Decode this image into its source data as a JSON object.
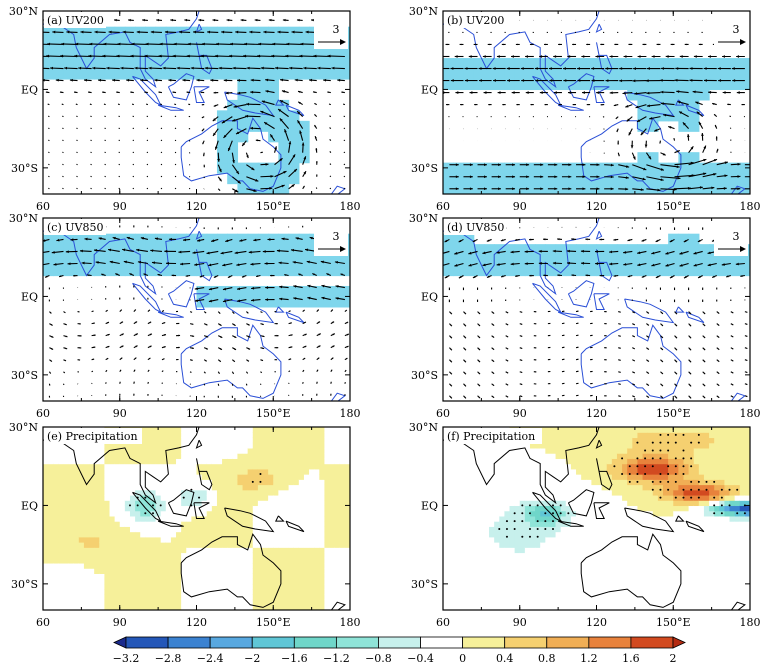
{
  "figure": {
    "panels": [
      {
        "id": "a",
        "label": "(a) UV200",
        "kind": "wind"
      },
      {
        "id": "b",
        "label": "(b) UV200",
        "kind": "wind"
      },
      {
        "id": "c",
        "label": "(c) UV850",
        "kind": "wind"
      },
      {
        "id": "d",
        "label": "(d) UV850",
        "kind": "wind"
      },
      {
        "id": "e",
        "label": "(e) Precipitation",
        "kind": "precip"
      },
      {
        "id": "f",
        "label": "(f) Precipitation",
        "kind": "precip"
      }
    ],
    "ref_vector": "3",
    "x_ticks": [
      "60",
      "90",
      "120",
      "150°E",
      "180"
    ],
    "y_ticks": [
      "30°N",
      "EQ",
      "30°S"
    ]
  },
  "chart_data": {
    "type": "heatmap",
    "title": "",
    "xlabel": "",
    "ylabel": "",
    "xlim": [
      60,
      180
    ],
    "ylim": [
      -40,
      30
    ],
    "x_tick_values": [
      60,
      90,
      120,
      150,
      180
    ],
    "y_tick_values": [
      30,
      0,
      -30
    ],
    "colorbar": {
      "levels": [
        "-3.2",
        "-2.8",
        "-2.4",
        "-2",
        "-1.6",
        "-1.2",
        "-0.8",
        "-0.4",
        "0",
        "0.4",
        "0.8",
        "1.2",
        "1.6",
        "2"
      ],
      "colors": [
        "#1a2a8c",
        "#2457b8",
        "#3b82d1",
        "#58a8e0",
        "#5fc6d6",
        "#6fd6c9",
        "#8fe4d8",
        "#c7f0ec",
        "#ffffff",
        "#f6f09a",
        "#f5d070",
        "#f0ae55",
        "#e8823c",
        "#d24a20",
        "#b52a10"
      ]
    },
    "panels": [
      {
        "id": "a",
        "variable": "UV200",
        "ref_vector_magnitude": 3
      },
      {
        "id": "b",
        "variable": "UV200",
        "ref_vector_magnitude": 3
      },
      {
        "id": "c",
        "variable": "UV850",
        "ref_vector_magnitude": 3
      },
      {
        "id": "d",
        "variable": "UV850",
        "ref_vector_magnitude": 3
      },
      {
        "id": "e",
        "variable": "Precipitation"
      },
      {
        "id": "f",
        "variable": "Precipitation"
      }
    ]
  }
}
